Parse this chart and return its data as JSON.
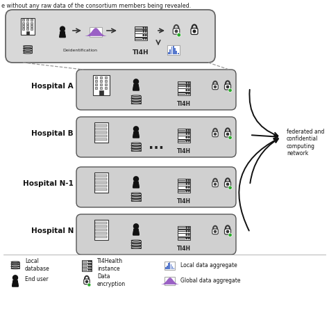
{
  "title_text": "e without any raw data of the consortium members being revealed.",
  "background_color": "#ffffff",
  "box_fill_top": "#d8d8d8",
  "box_fill_hosp": "#d0d0d0",
  "box_edge": "#555555",
  "hospitals": [
    "Hospital A",
    "Hospital B",
    "Hospital N-1",
    "Hospital N"
  ],
  "dots_label": "...",
  "federated_label": "federated and\nconfidential\ncomputing\nnetwork",
  "top_box_label": "TI4H",
  "ti4h_label": "TI4H",
  "arrow_color": "#111111",
  "lock_green": "#2aaa2a",
  "purple_color": "#8844bb",
  "blue_color": "#5577cc",
  "dashed_color": "#999999",
  "icon_color": "#333333"
}
